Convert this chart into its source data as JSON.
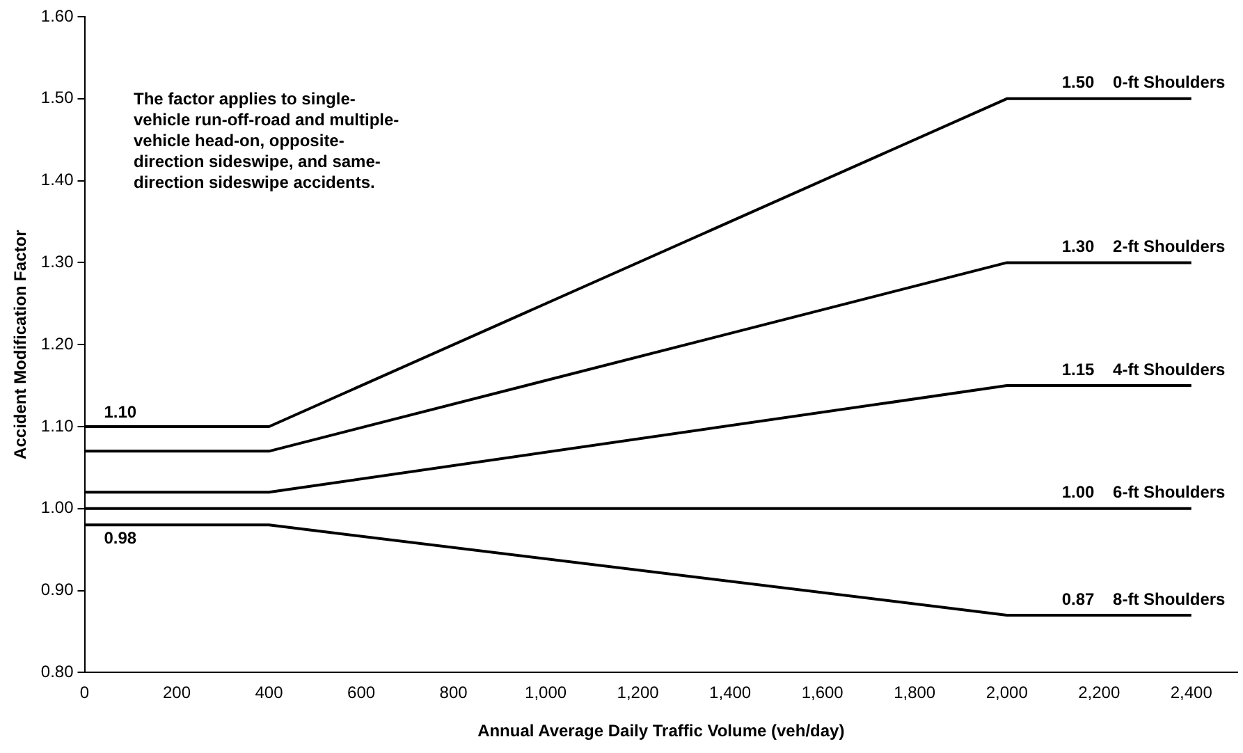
{
  "chart_data": {
    "type": "line",
    "xlabel": "Annual Average Daily Traffic Volume (veh/day)",
    "ylabel": "Accident Modification Factor",
    "annotations": [
      "The factor applies to single-vehicle run-off-road and multiple-vehicle head-on, opposite-direction sideswipe, and same-direction sideswipe accidents."
    ],
    "x": [
      0,
      400,
      2000,
      2400
    ],
    "series": [
      {
        "name": "0-ft Shoulders",
        "color": "#000000",
        "values": [
          1.1,
          1.1,
          1.5,
          1.5
        ],
        "value_labels": [
          "1.10",
          null,
          null,
          "1.50"
        ]
      },
      {
        "name": "2-ft Shoulders",
        "color": "#000000",
        "values": [
          1.07,
          1.07,
          1.3,
          1.3
        ],
        "value_labels": [
          null,
          null,
          null,
          "1.30"
        ]
      },
      {
        "name": "4-ft Shoulders",
        "color": "#000000",
        "values": [
          1.02,
          1.02,
          1.15,
          1.15
        ],
        "value_labels": [
          null,
          null,
          null,
          "1.15"
        ]
      },
      {
        "name": "6-ft Shoulders",
        "color": "#000000",
        "values": [
          1.0,
          1.0,
          1.0,
          1.0
        ],
        "value_labels": [
          null,
          null,
          null,
          "1.00"
        ]
      },
      {
        "name": "8-ft Shoulders",
        "color": "#000000",
        "values": [
          0.98,
          0.98,
          0.87,
          0.87
        ],
        "value_labels": [
          "0.98",
          null,
          null,
          "0.87"
        ]
      }
    ],
    "xlim": [
      0,
      2500
    ],
    "xticks": [
      0,
      200,
      400,
      600,
      800,
      {
        "value": 1000,
        "label": "1,000"
      },
      {
        "value": 1200,
        "label": "1,200"
      },
      {
        "value": 1400,
        "label": "1,400"
      },
      {
        "value": 1600,
        "label": "1,600"
      },
      {
        "value": 1800,
        "label": "1,800"
      },
      {
        "value": 2000,
        "label": "2,000"
      },
      {
        "value": 2200,
        "label": "2,200"
      },
      {
        "value": 2400,
        "label": "2,400"
      }
    ],
    "ylim": [
      0.8,
      1.6
    ],
    "yticks": [
      {
        "value": 0.8,
        "label": "0.80"
      },
      {
        "value": 0.9,
        "label": "0.90"
      },
      {
        "value": 1.0,
        "label": "1.00"
      },
      {
        "value": 1.1,
        "label": "1.10"
      },
      {
        "value": 1.2,
        "label": "1.20"
      },
      {
        "value": 1.3,
        "label": "1.30"
      },
      {
        "value": 1.4,
        "label": "1.40"
      },
      {
        "value": 1.5,
        "label": "1.50"
      },
      {
        "value": 1.6,
        "label": "1.60"
      }
    ],
    "grid": false,
    "legend": false,
    "marker": "none",
    "line_style": "solid"
  }
}
